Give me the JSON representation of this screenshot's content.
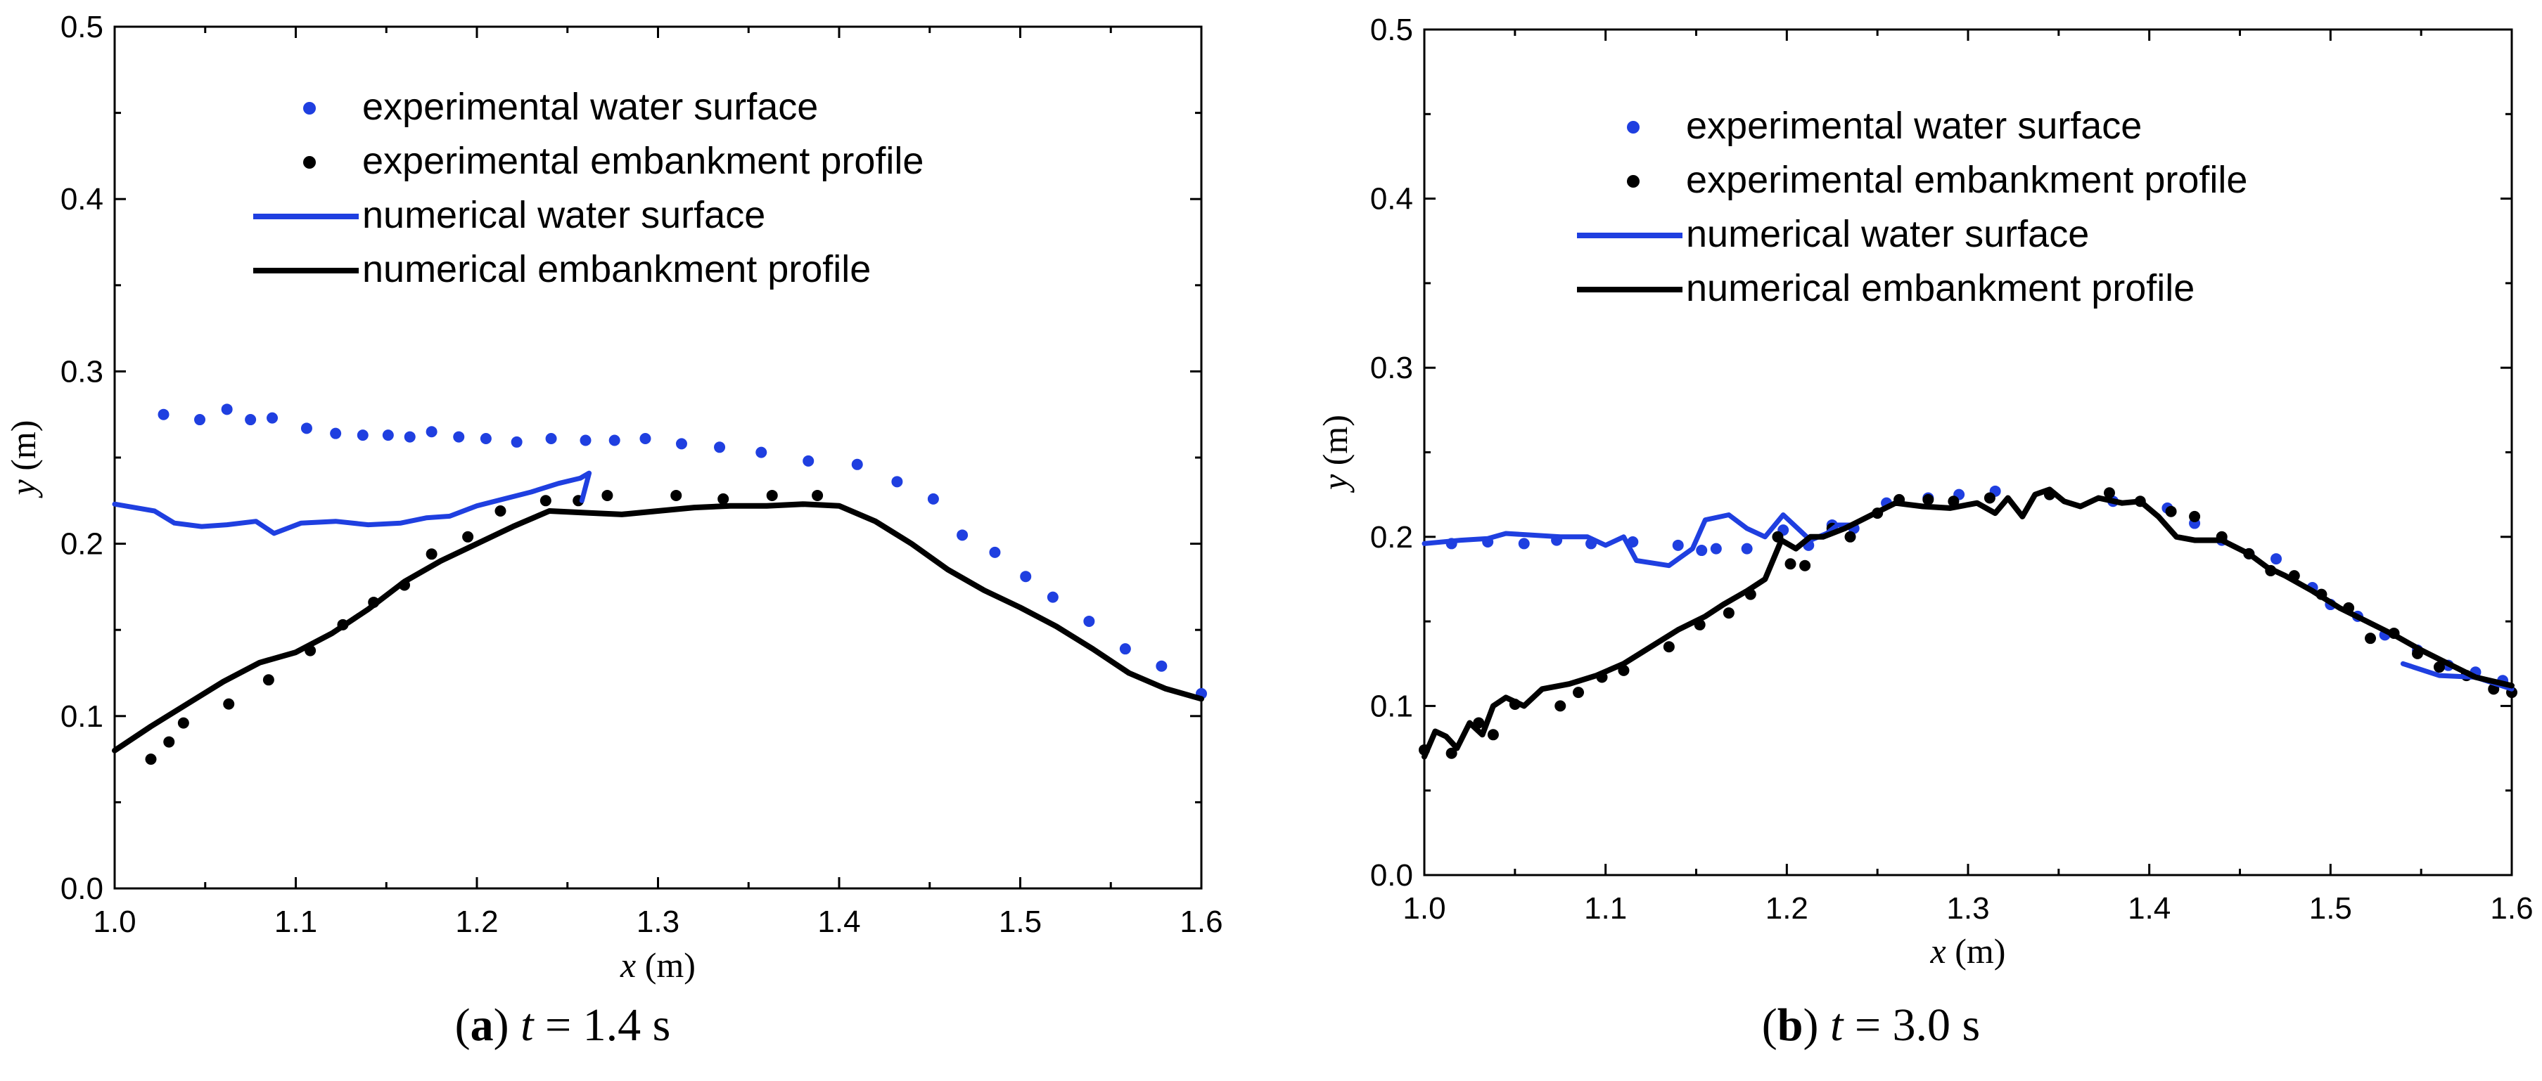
{
  "chart_data": [
    {
      "type": "scatter+line",
      "panel_letter": "a",
      "caption_var": "t",
      "caption_eq": " = 1.4 s",
      "xlabel_var": "x",
      "xlabel_unit": " (m)",
      "ylabel_var": "y",
      "ylabel_unit": " (m)",
      "xlim": [
        1.0,
        1.6
      ],
      "ylim": [
        0.0,
        0.5
      ],
      "xticks": [
        "1.0",
        "1.1",
        "1.2",
        "1.3",
        "1.4",
        "1.5",
        "1.6"
      ],
      "yticks": [
        "0.0",
        "0.1",
        "0.2",
        "0.3",
        "0.4",
        "0.5"
      ],
      "legend": [
        {
          "label": "experimental water surface",
          "kind": "dot",
          "color": "#1f3fe0"
        },
        {
          "label": "experimental embankment profile",
          "kind": "dot",
          "color": "#000000"
        },
        {
          "label": "numerical water surface",
          "kind": "line",
          "color": "#1f3fe0"
        },
        {
          "label": "numerical embankment profile",
          "kind": "line",
          "color": "#000000"
        }
      ],
      "series": [
        {
          "name": "experimental water surface",
          "kind": "dot",
          "color": "#1f3fe0",
          "x": [
            1.027,
            1.047,
            1.062,
            1.075,
            1.087,
            1.106,
            1.122,
            1.137,
            1.151,
            1.163,
            1.175,
            1.19,
            1.205,
            1.222,
            1.241,
            1.26,
            1.276,
            1.293,
            1.313,
            1.334,
            1.357,
            1.383,
            1.41,
            1.432,
            1.452,
            1.468,
            1.486,
            1.503,
            1.518,
            1.538,
            1.558,
            1.578,
            1.6
          ],
          "y": [
            0.275,
            0.272,
            0.278,
            0.272,
            0.273,
            0.267,
            0.264,
            0.263,
            0.263,
            0.262,
            0.265,
            0.262,
            0.261,
            0.259,
            0.261,
            0.26,
            0.26,
            0.261,
            0.258,
            0.256,
            0.253,
            0.248,
            0.246,
            0.236,
            0.226,
            0.205,
            0.195,
            0.181,
            0.169,
            0.155,
            0.139,
            0.129,
            0.113
          ]
        },
        {
          "name": "experimental embankment profile",
          "kind": "dot",
          "color": "#000000",
          "x": [
            1.02,
            1.03,
            1.038,
            1.063,
            1.085,
            1.108,
            1.126,
            1.143,
            1.16,
            1.175,
            1.195,
            1.213,
            1.238,
            1.256,
            1.272,
            1.31,
            1.336,
            1.363,
            1.388
          ],
          "y": [
            0.075,
            0.085,
            0.096,
            0.107,
            0.121,
            0.138,
            0.153,
            0.166,
            0.176,
            0.194,
            0.204,
            0.219,
            0.225,
            0.225,
            0.228,
            0.228,
            0.226,
            0.228,
            0.228
          ]
        },
        {
          "name": "numerical water surface",
          "kind": "line",
          "color": "#1f3fe0",
          "x": [
            1.0,
            1.022,
            1.033,
            1.048,
            1.062,
            1.078,
            1.088,
            1.103,
            1.122,
            1.14,
            1.158,
            1.172,
            1.185,
            1.2,
            1.215,
            1.23,
            1.245,
            1.257,
            1.262,
            1.258
          ],
          "y": [
            0.223,
            0.219,
            0.212,
            0.21,
            0.211,
            0.213,
            0.206,
            0.212,
            0.213,
            0.211,
            0.212,
            0.215,
            0.216,
            0.222,
            0.226,
            0.23,
            0.235,
            0.238,
            0.241,
            0.225
          ]
        },
        {
          "name": "numerical embankment profile",
          "kind": "line",
          "color": "#000000",
          "x": [
            1.0,
            1.02,
            1.04,
            1.06,
            1.08,
            1.1,
            1.12,
            1.14,
            1.16,
            1.18,
            1.2,
            1.22,
            1.24,
            1.26,
            1.28,
            1.3,
            1.32,
            1.34,
            1.36,
            1.38,
            1.4,
            1.42,
            1.44,
            1.46,
            1.48,
            1.5,
            1.52,
            1.54,
            1.56,
            1.58,
            1.6
          ],
          "y": [
            0.08,
            0.094,
            0.107,
            0.12,
            0.131,
            0.137,
            0.148,
            0.162,
            0.178,
            0.19,
            0.2,
            0.21,
            0.219,
            0.218,
            0.217,
            0.219,
            0.221,
            0.222,
            0.222,
            0.223,
            0.222,
            0.213,
            0.2,
            0.185,
            0.173,
            0.163,
            0.152,
            0.139,
            0.125,
            0.116,
            0.11
          ]
        }
      ]
    },
    {
      "type": "scatter+line",
      "panel_letter": "b",
      "caption_var": "t",
      "caption_eq": " = 3.0 s",
      "xlabel_var": "x",
      "xlabel_unit": " (m)",
      "ylabel_var": "y",
      "ylabel_unit": " (m)",
      "xlim": [
        1.0,
        1.6
      ],
      "ylim": [
        0.0,
        0.5
      ],
      "xticks": [
        "1.0",
        "1.1",
        "1.2",
        "1.3",
        "1.4",
        "1.5",
        "1.6"
      ],
      "yticks": [
        "0.0",
        "0.1",
        "0.2",
        "0.3",
        "0.4",
        "0.5"
      ],
      "legend": [
        {
          "label": "experimental water surface",
          "kind": "dot",
          "color": "#1f3fe0"
        },
        {
          "label": "experimental embankment profile",
          "kind": "dot",
          "color": "#000000"
        },
        {
          "label": "numerical water surface",
          "kind": "line",
          "color": "#1f3fe0"
        },
        {
          "label": "numerical embankment profile",
          "kind": "line",
          "color": "#000000"
        }
      ],
      "series": [
        {
          "name": "experimental water surface",
          "kind": "dot",
          "color": "#1f3fe0",
          "x": [
            1.015,
            1.035,
            1.055,
            1.073,
            1.092,
            1.115,
            1.14,
            1.153,
            1.161,
            1.178,
            1.198,
            1.212,
            1.225,
            1.237,
            1.255,
            1.278,
            1.295,
            1.315,
            1.345,
            1.38,
            1.41,
            1.425,
            1.44,
            1.455,
            1.47,
            1.49,
            1.5,
            1.515,
            1.53,
            1.548,
            1.565,
            1.58,
            1.595
          ],
          "y": [
            0.196,
            0.197,
            0.196,
            0.198,
            0.196,
            0.197,
            0.195,
            0.192,
            0.193,
            0.193,
            0.204,
            0.195,
            0.207,
            0.205,
            0.22,
            0.223,
            0.225,
            0.227,
            0.225,
            0.221,
            0.217,
            0.208,
            0.198,
            0.19,
            0.187,
            0.17,
            0.16,
            0.153,
            0.142,
            0.133,
            0.124,
            0.12,
            0.115
          ]
        },
        {
          "name": "experimental embankment profile",
          "kind": "dot",
          "color": "#000000",
          "x": [
            1.0,
            1.015,
            1.03,
            1.038,
            1.05,
            1.075,
            1.085,
            1.098,
            1.11,
            1.135,
            1.152,
            1.168,
            1.18,
            1.195,
            1.202,
            1.21,
            1.225,
            1.235,
            1.25,
            1.262,
            1.278,
            1.292,
            1.312,
            1.345,
            1.378,
            1.395,
            1.412,
            1.425,
            1.44,
            1.455,
            1.467,
            1.48,
            1.495,
            1.51,
            1.522,
            1.535,
            1.548,
            1.56,
            1.575,
            1.59,
            1.6
          ],
          "y": [
            0.074,
            0.072,
            0.09,
            0.083,
            0.101,
            0.1,
            0.108,
            0.117,
            0.121,
            0.135,
            0.148,
            0.155,
            0.166,
            0.2,
            0.184,
            0.183,
            0.205,
            0.2,
            0.214,
            0.222,
            0.222,
            0.221,
            0.223,
            0.225,
            0.226,
            0.221,
            0.215,
            0.212,
            0.2,
            0.19,
            0.18,
            0.177,
            0.166,
            0.158,
            0.14,
            0.143,
            0.131,
            0.123,
            0.118,
            0.11,
            0.108
          ]
        },
        {
          "name": "numerical water surface",
          "kind": "line",
          "color": "#1f3fe0",
          "x": [
            1.0,
            1.02,
            1.035,
            1.045,
            1.06,
            1.075,
            1.09,
            1.1,
            1.11,
            1.117,
            1.135,
            1.148,
            1.155,
            1.168,
            1.178,
            1.188,
            1.198,
            1.203,
            1.213,
            1.222,
            1.228,
            1.238
          ],
          "y": [
            0.196,
            0.198,
            0.199,
            0.202,
            0.201,
            0.2,
            0.2,
            0.195,
            0.2,
            0.186,
            0.183,
            0.193,
            0.21,
            0.213,
            0.205,
            0.2,
            0.213,
            0.208,
            0.198,
            0.202,
            0.207,
            0.207
          ]
        },
        {
          "name": "numerical water surface (tail)",
          "kind": "line",
          "color": "#1f3fe0",
          "x": [
            1.54,
            1.56,
            1.58,
            1.6
          ],
          "y": [
            0.125,
            0.118,
            0.117,
            0.11
          ]
        },
        {
          "name": "numerical embankment profile",
          "kind": "line",
          "color": "#000000",
          "x": [
            1.0,
            1.006,
            1.012,
            1.018,
            1.025,
            1.032,
            1.038,
            1.045,
            1.055,
            1.065,
            1.08,
            1.095,
            1.11,
            1.125,
            1.14,
            1.155,
            1.165,
            1.178,
            1.188,
            1.197,
            1.205,
            1.213,
            1.22,
            1.232,
            1.245,
            1.26,
            1.275,
            1.29,
            1.305,
            1.315,
            1.322,
            1.33,
            1.337,
            1.345,
            1.353,
            1.362,
            1.372,
            1.385,
            1.395,
            1.405,
            1.415,
            1.425,
            1.44,
            1.455,
            1.465,
            1.475,
            1.49,
            1.505,
            1.52,
            1.535,
            1.55,
            1.565,
            1.58,
            1.6
          ],
          "y": [
            0.07,
            0.085,
            0.082,
            0.075,
            0.09,
            0.083,
            0.1,
            0.105,
            0.1,
            0.11,
            0.113,
            0.118,
            0.125,
            0.135,
            0.145,
            0.153,
            0.16,
            0.168,
            0.175,
            0.198,
            0.193,
            0.2,
            0.2,
            0.205,
            0.212,
            0.22,
            0.218,
            0.217,
            0.22,
            0.214,
            0.223,
            0.212,
            0.225,
            0.228,
            0.221,
            0.218,
            0.223,
            0.22,
            0.221,
            0.212,
            0.2,
            0.198,
            0.198,
            0.19,
            0.182,
            0.177,
            0.168,
            0.158,
            0.15,
            0.142,
            0.133,
            0.125,
            0.117,
            0.112
          ]
        }
      ]
    }
  ]
}
